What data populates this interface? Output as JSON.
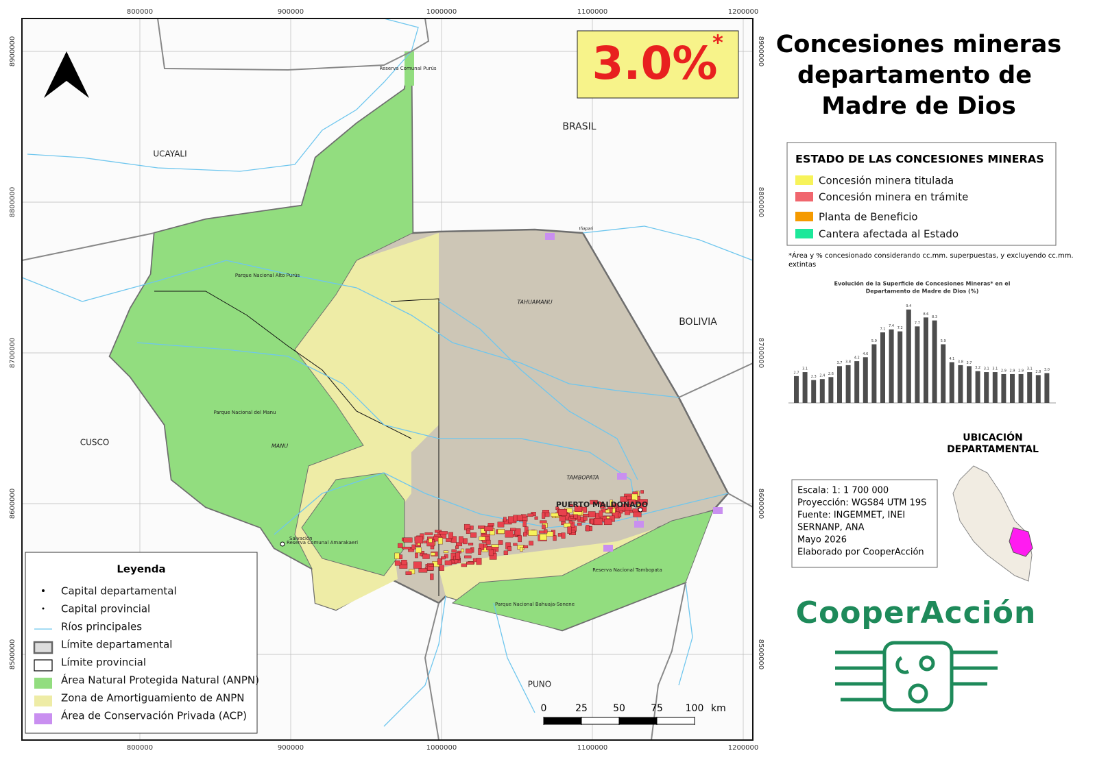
{
  "badge": {
    "text": "3.0%",
    "mark": "*"
  },
  "title": [
    "Concesiones mineras",
    "departamento de",
    "Madre de Dios"
  ],
  "grid": {
    "x": [
      800000,
      900000,
      1000000,
      1100000,
      1200000
    ],
    "y": [
      8900000,
      8800000,
      8700000,
      8600000,
      8500000
    ]
  },
  "map_labels": [
    "UCAYALI",
    "BRASIL",
    "BOLIVIA",
    "CUSCO",
    "PUNO",
    "PUERTO MALDONADO",
    "TAHUAMANU",
    "TAMBOPATA",
    "MANU",
    "Parque Nacional Alto Purús",
    "Parque Nacional del Manu",
    "Reserva Comunal Purús",
    "Reserva Comunal Amarakaeri",
    "Reserva Nacional Tambopata",
    "Parque Nacional Bahuaja-Sonene",
    "Salvación",
    "Iñapari"
  ],
  "legend": {
    "title": "Leyenda",
    "items": [
      "Capital departamental",
      "Capital provincial",
      "Ríos principales",
      "Límite departamental",
      "Límite provincial",
      "Área Natural Protegida Natural (ANPN)",
      "Zona de Amortiguamiento de ANPN",
      "Área de Conservación Privada (ACP)"
    ]
  },
  "status_legend": {
    "title": "ESTADO DE LAS CONCESIONES MINERAS",
    "items": [
      "Concesión minera titulada",
      "Concesión minera en trámite",
      "Planta de Beneficio",
      "Cantera afectada al Estado"
    ]
  },
  "note": [
    "*Área y % concesionado considerando cc.mm. superpuestas, y excluyendo cc.mm.",
    "extintas"
  ],
  "chart_data": {
    "type": "bar",
    "title": [
      "Evolución de la Superficie de Concesiones Mineras* en el",
      "Departamento de Madre de Dios (%)"
    ],
    "categories": [
      null,
      null,
      null,
      null,
      null,
      null,
      null,
      null,
      null,
      null,
      null,
      null,
      null,
      null,
      null,
      null,
      null,
      null,
      null,
      null,
      null,
      null,
      null,
      null,
      null,
      null,
      null,
      null,
      null,
      null
    ],
    "values": [
      2.7,
      3.1,
      2.3,
      2.4,
      2.6,
      3.7,
      3.8,
      4.2,
      4.6,
      5.9,
      7.1,
      7.4,
      7.2,
      9.4,
      7.7,
      8.6,
      8.3,
      5.9,
      4.1,
      3.8,
      3.7,
      3.2,
      3.1,
      3.1,
      2.9,
      2.9,
      2.9,
      3.1,
      2.8,
      3.0
    ],
    "value_labels": [
      "2.7",
      "3.1",
      "2.3",
      "2.4",
      "2.6",
      "3.7",
      "3.8",
      "4.2",
      "4.6",
      "5.9",
      "7.1",
      "7.4",
      "7.2",
      "9.4",
      "7.7",
      "8.6",
      "8.3",
      "5.9",
      "4.1",
      "3.8",
      "3.7",
      "3.2",
      "3.1",
      "3.1",
      "2.9",
      "2.9",
      "2.9",
      "3.1",
      "2.8",
      "3.0"
    ],
    "color": "#4d4d4d"
  },
  "scale_bar": {
    "ticks": [
      0,
      25,
      50,
      75,
      100
    ],
    "unit": "km"
  },
  "location_title": [
    "UBICACIÓN",
    "DEPARTAMENTAL"
  ],
  "info": [
    "Escala: 1: 1 700 000",
    "Proyección: WGS84 UTM 19S",
    "Fuente: INGEMMET, INEI",
    "SERNANP, ANA",
    "Mayo 2026",
    "Elaborado por CooperAcción"
  ],
  "logo": "CooperAcción"
}
